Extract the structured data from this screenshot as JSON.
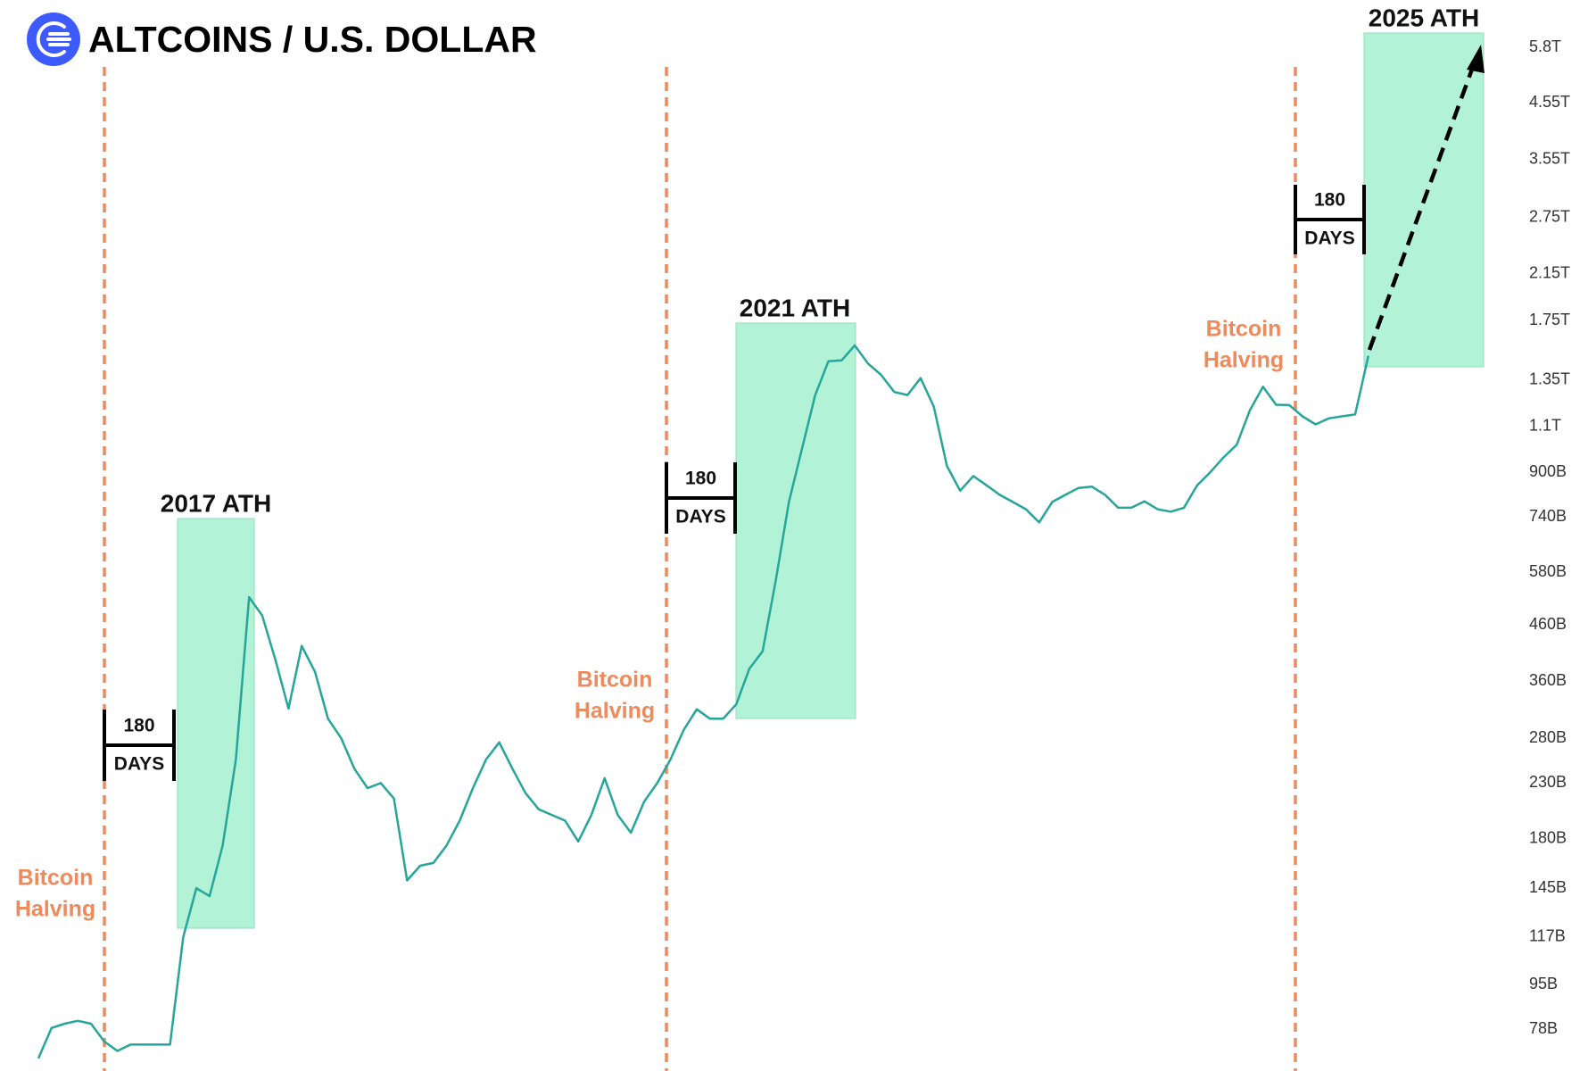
{
  "chart_data": {
    "type": "line",
    "title": "ALTCOINS / U.S. DOLLAR",
    "color": "#26a69a",
    "log_scale": true,
    "grid": false,
    "ylim": [
      65000000000.0,
      7150000000000.0
    ],
    "yticks": [
      {
        "value": 5800000000000.0,
        "label": "5.8T"
      },
      {
        "value": 4550000000000.0,
        "label": "4.55T"
      },
      {
        "value": 3550000000000.0,
        "label": "3.55T"
      },
      {
        "value": 2750000000000.0,
        "label": "2.75T"
      },
      {
        "value": 2150000000000.0,
        "label": "2.15T"
      },
      {
        "value": 1750000000000.0,
        "label": "1.75T"
      },
      {
        "value": 1350000000000.0,
        "label": "1.35T"
      },
      {
        "value": 1100000000000.0,
        "label": "1.1T"
      },
      {
        "value": 900000000000.0,
        "label": "900B"
      },
      {
        "value": 740000000000.0,
        "label": "740B"
      },
      {
        "value": 580000000000.0,
        "label": "580B"
      },
      {
        "value": 460000000000.0,
        "label": "460B"
      },
      {
        "value": 360000000000.0,
        "label": "360B"
      },
      {
        "value": 280000000000.0,
        "label": "280B"
      },
      {
        "value": 230000000000.0,
        "label": "230B"
      },
      {
        "value": 180000000000.0,
        "label": "180B"
      },
      {
        "value": 145000000000.0,
        "label": "145B"
      },
      {
        "value": 117000000000.0,
        "label": "117B"
      },
      {
        "value": 95000000000.0,
        "label": "95B"
      },
      {
        "value": 78000000000.0,
        "label": "78B"
      }
    ],
    "values": [
      68700000000.0,
      78500000000.0,
      80000000000.0,
      81000000000.0,
      80000000000.0,
      74000000000.0,
      71000000000.0,
      73000000000.0,
      73000000000.0,
      73000000000.0,
      73000000000.0,
      117000000000.0,
      145000000000.0,
      140000000000.0,
      175000000000.0,
      255000000000.0,
      520000000000.0,
      480000000000.0,
      395000000000.0,
      319000000000.0,
      420000000000.0,
      375000000000.0,
      305000000000.0,
      280000000000.0,
      245000000000.0,
      225000000000.0,
      230000000000.0,
      215000000000.0,
      150000000000.0,
      160000000000.0,
      162000000000.0,
      175000000000.0,
      195000000000.0,
      225000000000.0,
      255000000000.0,
      275000000000.0,
      245000000000.0,
      220000000000.0,
      205000000000.0,
      200000000000.0,
      195000000000.0,
      178000000000.0,
      200000000000.0,
      235000000000.0,
      200000000000.0,
      185000000000.0,
      212000000000.0,
      230000000000.0,
      255000000000.0,
      290000000000.0,
      318000000000.0,
      305000000000.0,
      305000000000.0,
      325000000000.0,
      380000000000.0,
      410000000000.0,
      560000000000.0,
      790000000000.0,
      1000000000000.0,
      1263000000000.0,
      1465000000000.0,
      1470000000000.0,
      1570000000000.0,
      1450000000000.0,
      1380000000000.0,
      1280000000000.0,
      1263000000000.0,
      1360000000000.0,
      1200000000000.0,
      925000000000.0,
      830000000000.0,
      885000000000.0,
      850000000000.0,
      815000000000.0,
      790000000000.0,
      765000000000.0,
      722000000000.0,
      790000000000.0,
      815000000000.0,
      840000000000.0,
      845000000000.0,
      815000000000.0,
      770000000000.0,
      770000000000.0,
      792000000000.0,
      765000000000.0,
      757000000000.0,
      770000000000.0,
      850000000000.0,
      900000000000.0,
      960000000000.0,
      1015000000000.0,
      1180000000000.0,
      1310000000000.0,
      1210000000000.0,
      1208000000000.0,
      1150000000000.0,
      1110000000000.0,
      1140000000000.0,
      1150000000000.0,
      1160000000000.0,
      1500000000000.0
    ],
    "annotations": {
      "halvings": [
        [
          "Bitcoin",
          "Halving"
        ],
        [
          "Bitcoin",
          "Halving"
        ],
        [
          "Bitcoin",
          "Halving"
        ]
      ],
      "ath_labels": [
        "2017 ATH",
        "2021 ATH",
        "2025 ATH"
      ],
      "day_brackets": [
        [
          180,
          "DAYS"
        ],
        [
          180,
          "DAYS"
        ],
        [
          180,
          "DAYS"
        ]
      ]
    }
  }
}
